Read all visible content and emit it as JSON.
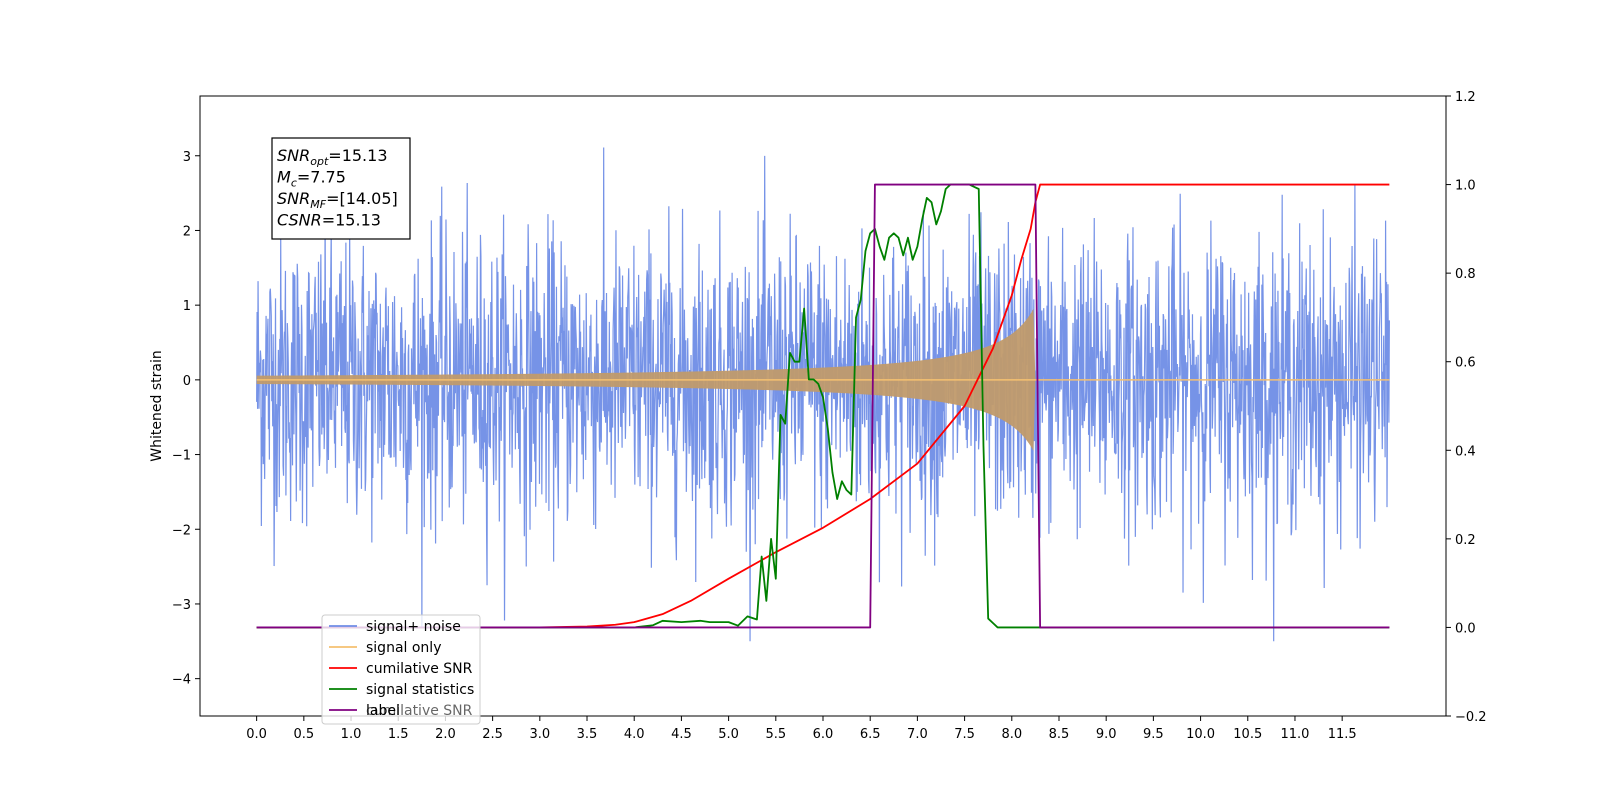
{
  "chart_data": {
    "type": "line",
    "ylabel": "Whitened strain",
    "x_ticks": [
      "0.0",
      "0.5",
      "1.0",
      "1.5",
      "2.0",
      "2.5",
      "3.0",
      "3.5",
      "4.0",
      "4.5",
      "5.0",
      "5.5",
      "6.0",
      "6.5",
      "7.0",
      "7.5",
      "8.0",
      "8.5",
      "9.0",
      "9.5",
      "10.0",
      "10.5",
      "11.0",
      "11.5"
    ],
    "xlim": [
      -0.6,
      12.6
    ],
    "ylim_left": [
      -4.5,
      3.8
    ],
    "y_ticks_left": [
      "−4",
      "−3",
      "−2",
      "−1",
      "0",
      "1",
      "2",
      "3"
    ],
    "ylim_right": [
      -0.2,
      1.2
    ],
    "y_ticks_right": [
      "−0.2",
      "0.0",
      "0.2",
      "0.4",
      "0.6",
      "0.8",
      "1.0",
      "1.2"
    ],
    "annotation": {
      "lines": [
        {
          "base": "SNR",
          "sub": "opt",
          "rest": "=15.13"
        },
        {
          "base": "M",
          "sub": "c",
          "rest": "=7.75"
        },
        {
          "base": "SNR",
          "sub": "MF",
          "rest": "=[14.05]"
        },
        {
          "base": "CSNR",
          "sub": "",
          "rest": "=15.13"
        }
      ]
    },
    "legend": {
      "position": "lower-left",
      "entries": [
        {
          "label": "signal+ noise",
          "color": "#6f8de6"
        },
        {
          "label": "signal only",
          "color": "#f5c070"
        },
        {
          "label": "cumilative SNR",
          "color": "#ff0000"
        },
        {
          "label": "signal statistics",
          "color": "#008000"
        },
        {
          "label": "label",
          "color": "#800080"
        }
      ],
      "ghost_text": "cumilative SNR"
    },
    "series": [
      {
        "name": "signal+ noise",
        "axis": "left",
        "color": "#6f8de6",
        "kind": "noise",
        "x_range": [
          0.0,
          12.0
        ],
        "amplitude_range": [
          -3.5,
          3.5
        ]
      },
      {
        "name": "signal only",
        "axis": "left",
        "color": "#c09a6b",
        "kind": "chirp",
        "x_range": [
          0.0,
          8.3
        ],
        "peak_amplitude": 1.0,
        "merger_time": 8.25
      },
      {
        "name": "cumilative SNR",
        "axis": "right",
        "color": "#ff0000",
        "x": [
          0.0,
          3.0,
          3.5,
          3.8,
          4.0,
          4.3,
          4.6,
          5.0,
          5.5,
          6.0,
          6.5,
          7.0,
          7.5,
          7.8,
          8.0,
          8.1,
          8.2,
          8.25,
          8.3,
          11.5,
          12.0
        ],
        "y": [
          0.0,
          0.0,
          0.002,
          0.006,
          0.012,
          0.03,
          0.06,
          0.11,
          0.17,
          0.225,
          0.29,
          0.37,
          0.5,
          0.63,
          0.75,
          0.83,
          0.9,
          0.96,
          1.0,
          1.0,
          1.0
        ]
      },
      {
        "name": "signal statistics",
        "axis": "right",
        "color": "#008000",
        "x": [
          0.0,
          4.0,
          4.2,
          4.3,
          4.5,
          4.7,
          4.8,
          5.0,
          5.1,
          5.2,
          5.3,
          5.35,
          5.4,
          5.45,
          5.5,
          5.55,
          5.6,
          5.65,
          5.7,
          5.75,
          5.8,
          5.85,
          5.9,
          5.95,
          6.0,
          6.05,
          6.1,
          6.15,
          6.2,
          6.25,
          6.3,
          6.35,
          6.4,
          6.45,
          6.5,
          6.55,
          6.6,
          6.65,
          6.7,
          6.75,
          6.8,
          6.85,
          6.9,
          6.95,
          7.0,
          7.05,
          7.1,
          7.15,
          7.2,
          7.25,
          7.3,
          7.35,
          7.4,
          7.45,
          7.5,
          7.55,
          7.6,
          7.65,
          7.7,
          7.75,
          7.8,
          7.85,
          7.9,
          7.95,
          8.0,
          8.05,
          8.1,
          8.15,
          8.2,
          8.25,
          8.28,
          8.3,
          8.35,
          8.4,
          12.0
        ],
        "y": [
          0.0,
          0.0,
          0.005,
          0.015,
          0.012,
          0.015,
          0.012,
          0.012,
          0.004,
          0.025,
          0.018,
          0.16,
          0.06,
          0.2,
          0.11,
          0.48,
          0.46,
          0.62,
          0.6,
          0.6,
          0.72,
          0.56,
          0.56,
          0.55,
          0.52,
          0.45,
          0.35,
          0.29,
          0.33,
          0.31,
          0.3,
          0.7,
          0.74,
          0.85,
          0.89,
          0.9,
          0.86,
          0.83,
          0.88,
          0.89,
          0.88,
          0.84,
          0.88,
          0.83,
          0.86,
          0.92,
          0.97,
          0.96,
          0.91,
          0.94,
          0.99,
          1.0,
          1.0,
          1.0,
          1.0,
          1.0,
          0.995,
          0.99,
          0.41,
          0.02,
          0.01,
          0.0,
          0.0,
          0.0,
          0.0,
          0.0,
          0.0,
          0.0,
          0.0,
          0.0,
          0.0,
          0.0,
          0.0,
          0.0,
          0.0
        ]
      },
      {
        "name": "label",
        "axis": "right",
        "color": "#800080",
        "x": [
          0.0,
          6.5,
          6.55,
          8.25,
          8.3,
          12.0
        ],
        "y": [
          0.0,
          0.0,
          1.0,
          1.0,
          0.0,
          0.0
        ]
      }
    ]
  }
}
